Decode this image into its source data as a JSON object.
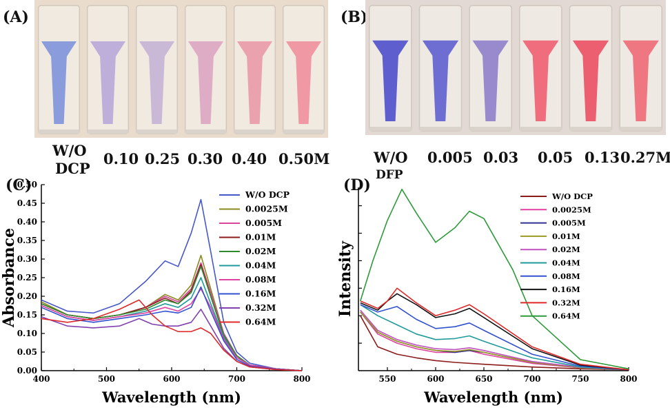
{
  "panels": {
    "A": {
      "label": "(A)",
      "concentrations": [
        "W/O",
        "DCP",
        "0.10",
        "0.25",
        "0.30",
        "0.40",
        "0.50M"
      ],
      "vial_colors": [
        "#7f93dc",
        "#b7a9d8",
        "#c5b2d6",
        "#dba6c2",
        "#e89aa9",
        "#ef8f9c"
      ]
    },
    "B": {
      "label": "(B)",
      "concentrations": [
        "W/O",
        "DFP",
        "0.005",
        "0.03",
        "0.05",
        "0.13",
        "0.27M"
      ],
      "vial_colors": [
        "#4f4fcc",
        "#5f61cf",
        "#8e7fc9",
        "#ee5f71",
        "#ea5063",
        "#ee6a76"
      ]
    },
    "C": {
      "label": "(C)"
    },
    "D": {
      "label": "(D)"
    }
  },
  "chart_data": [
    {
      "type": "line",
      "panel": "(C)",
      "xlabel": "Wavelength (nm)",
      "ylabel": "Absorbance",
      "xlim": [
        400,
        800
      ],
      "ylim": [
        0,
        0.5
      ],
      "xticks": [
        "400",
        "500",
        "600",
        "700",
        "800"
      ],
      "yticks": [
        "0.00",
        "0.05",
        "0.10",
        "0.15",
        "0.20",
        "0.25",
        "0.30",
        "0.35",
        "0.40",
        "0.45",
        "0.50"
      ],
      "legend_position": "top-right",
      "series": [
        {
          "name": "W/O DCP",
          "color": "#4657c8",
          "x": [
            400,
            440,
            480,
            520,
            560,
            590,
            610,
            630,
            645,
            660,
            680,
            700,
            720,
            760,
            800
          ],
          "y": [
            0.19,
            0.16,
            0.155,
            0.18,
            0.24,
            0.295,
            0.28,
            0.37,
            0.46,
            0.32,
            0.13,
            0.05,
            0.02,
            0.005,
            0.0
          ]
        },
        {
          "name": "0.0025M",
          "color": "#8a8a1e",
          "x": [
            400,
            440,
            480,
            520,
            560,
            590,
            610,
            630,
            645,
            660,
            680,
            700,
            720,
            760,
            800
          ],
          "y": [
            0.185,
            0.15,
            0.14,
            0.15,
            0.17,
            0.205,
            0.19,
            0.23,
            0.31,
            0.22,
            0.1,
            0.04,
            0.015,
            0.005,
            0.0
          ]
        },
        {
          "name": "0.005M",
          "color": "#d9459a",
          "x": [
            400,
            440,
            480,
            520,
            560,
            590,
            610,
            630,
            645,
            660,
            680,
            700,
            720,
            760,
            800
          ],
          "y": [
            0.18,
            0.15,
            0.14,
            0.15,
            0.17,
            0.2,
            0.185,
            0.22,
            0.29,
            0.21,
            0.1,
            0.04,
            0.015,
            0.005,
            0.0
          ]
        },
        {
          "name": "0.01M",
          "color": "#8b1a1a",
          "x": [
            400,
            440,
            480,
            520,
            560,
            590,
            610,
            630,
            645,
            660,
            680,
            700,
            720,
            760,
            800
          ],
          "y": [
            0.18,
            0.15,
            0.14,
            0.15,
            0.17,
            0.195,
            0.18,
            0.215,
            0.285,
            0.2,
            0.095,
            0.04,
            0.015,
            0.005,
            0.0
          ]
        },
        {
          "name": "0.02M",
          "color": "#2d8a2d",
          "x": [
            400,
            440,
            480,
            520,
            560,
            590,
            610,
            630,
            645,
            660,
            680,
            700,
            720,
            760,
            800
          ],
          "y": [
            0.18,
            0.15,
            0.14,
            0.15,
            0.165,
            0.19,
            0.18,
            0.21,
            0.28,
            0.2,
            0.095,
            0.04,
            0.015,
            0.005,
            0.0
          ]
        },
        {
          "name": "0.04M",
          "color": "#1f9a9a",
          "x": [
            400,
            440,
            480,
            520,
            560,
            590,
            610,
            630,
            645,
            660,
            680,
            700,
            720,
            760,
            800
          ],
          "y": [
            0.175,
            0.145,
            0.135,
            0.145,
            0.16,
            0.18,
            0.17,
            0.195,
            0.25,
            0.18,
            0.09,
            0.035,
            0.015,
            0.005,
            0.0
          ]
        },
        {
          "name": "0.08M",
          "color": "#e040a0",
          "x": [
            400,
            440,
            480,
            520,
            560,
            590,
            610,
            630,
            645,
            660,
            680,
            700,
            720,
            760,
            800
          ],
          "y": [
            0.175,
            0.145,
            0.135,
            0.145,
            0.155,
            0.17,
            0.16,
            0.18,
            0.22,
            0.17,
            0.085,
            0.035,
            0.015,
            0.005,
            0.0
          ]
        },
        {
          "name": "0.16M",
          "color": "#3050d0",
          "x": [
            400,
            440,
            480,
            520,
            560,
            590,
            610,
            630,
            645,
            660,
            680,
            700,
            720,
            760,
            800
          ],
          "y": [
            0.17,
            0.14,
            0.13,
            0.14,
            0.15,
            0.16,
            0.155,
            0.17,
            0.225,
            0.16,
            0.08,
            0.03,
            0.012,
            0.004,
            0.0
          ]
        },
        {
          "name": "0.32M",
          "color": "#8040b0",
          "x": [
            400,
            440,
            480,
            520,
            550,
            570,
            590,
            610,
            630,
            645,
            660,
            680,
            700,
            720,
            760,
            800
          ],
          "y": [
            0.145,
            0.12,
            0.115,
            0.12,
            0.14,
            0.125,
            0.12,
            0.12,
            0.13,
            0.165,
            0.12,
            0.06,
            0.025,
            0.01,
            0.003,
            0.0
          ]
        },
        {
          "name": "0.64M",
          "color": "#e02828",
          "x": [
            400,
            440,
            480,
            520,
            550,
            570,
            590,
            610,
            630,
            645,
            660,
            680,
            700,
            720,
            760,
            800
          ],
          "y": [
            0.14,
            0.13,
            0.14,
            0.165,
            0.19,
            0.15,
            0.12,
            0.105,
            0.105,
            0.115,
            0.1,
            0.055,
            0.025,
            0.01,
            0.003,
            0.0
          ]
        }
      ]
    },
    {
      "type": "line",
      "panel": "(D)",
      "xlabel": "Wavelength (nm)",
      "ylabel": "Intensity",
      "xlim": [
        520,
        800
      ],
      "ylim": [
        0,
        1
      ],
      "xticks": [
        "550",
        "600",
        "650",
        "700",
        "750",
        "800"
      ],
      "yticks": [],
      "legend_position": "top-right",
      "series": [
        {
          "name": "W/O DCP",
          "color": "#8b1a1a",
          "x": [
            522,
            540,
            560,
            580,
            600,
            620,
            650,
            700,
            750,
            800
          ],
          "y": [
            0.3,
            0.13,
            0.09,
            0.07,
            0.055,
            0.045,
            0.035,
            0.02,
            0.01,
            0.005
          ]
        },
        {
          "name": "0.0025M",
          "color": "#e040a0",
          "x": [
            522,
            540,
            560,
            580,
            600,
            620,
            635,
            650,
            700,
            750,
            800
          ],
          "y": [
            0.32,
            0.2,
            0.15,
            0.12,
            0.1,
            0.1,
            0.11,
            0.09,
            0.04,
            0.015,
            0.005
          ]
        },
        {
          "name": "0.005M",
          "color": "#303090",
          "x": [
            522,
            540,
            560,
            580,
            600,
            620,
            635,
            650,
            700,
            750,
            800
          ],
          "y": [
            0.32,
            0.21,
            0.16,
            0.13,
            0.11,
            0.1,
            0.11,
            0.1,
            0.045,
            0.015,
            0.005
          ]
        },
        {
          "name": "0.01M",
          "color": "#9a9a20",
          "x": [
            522,
            540,
            560,
            580,
            600,
            620,
            635,
            650,
            700,
            750,
            800
          ],
          "y": [
            0.32,
            0.21,
            0.16,
            0.13,
            0.11,
            0.105,
            0.115,
            0.1,
            0.045,
            0.015,
            0.005
          ]
        },
        {
          "name": "0.02M",
          "color": "#c050c0",
          "x": [
            522,
            540,
            560,
            580,
            600,
            620,
            635,
            650,
            700,
            750,
            800
          ],
          "y": [
            0.33,
            0.22,
            0.17,
            0.14,
            0.12,
            0.115,
            0.125,
            0.11,
            0.05,
            0.018,
            0.005
          ]
        },
        {
          "name": "0.04M",
          "color": "#1f9a9a",
          "x": [
            522,
            540,
            560,
            580,
            600,
            620,
            635,
            650,
            700,
            750,
            800
          ],
          "y": [
            0.36,
            0.3,
            0.25,
            0.2,
            0.17,
            0.175,
            0.19,
            0.16,
            0.07,
            0.02,
            0.005
          ]
        },
        {
          "name": "0.08M",
          "color": "#3050d0",
          "x": [
            522,
            540,
            560,
            580,
            600,
            620,
            635,
            650,
            700,
            750,
            800
          ],
          "y": [
            0.36,
            0.32,
            0.35,
            0.28,
            0.23,
            0.24,
            0.26,
            0.22,
            0.09,
            0.025,
            0.005
          ]
        },
        {
          "name": "0.16M",
          "color": "#111111",
          "x": [
            522,
            540,
            550,
            560,
            580,
            600,
            620,
            635,
            650,
            700,
            750,
            800
          ],
          "y": [
            0.37,
            0.33,
            0.38,
            0.42,
            0.36,
            0.29,
            0.31,
            0.34,
            0.29,
            0.12,
            0.03,
            0.005
          ]
        },
        {
          "name": "0.32M",
          "color": "#e02828",
          "x": [
            522,
            540,
            550,
            560,
            580,
            600,
            620,
            635,
            650,
            700,
            750,
            800
          ],
          "y": [
            0.38,
            0.34,
            0.38,
            0.45,
            0.37,
            0.3,
            0.33,
            0.36,
            0.31,
            0.13,
            0.035,
            0.005
          ]
        },
        {
          "name": "0.64M",
          "color": "#2d9a3a",
          "x": [
            522,
            535,
            550,
            565,
            580,
            600,
            620,
            635,
            650,
            680,
            700,
            750,
            800
          ],
          "y": [
            0.38,
            0.6,
            0.82,
            0.99,
            0.86,
            0.7,
            0.78,
            0.87,
            0.83,
            0.55,
            0.3,
            0.06,
            0.01
          ]
        }
      ]
    }
  ]
}
